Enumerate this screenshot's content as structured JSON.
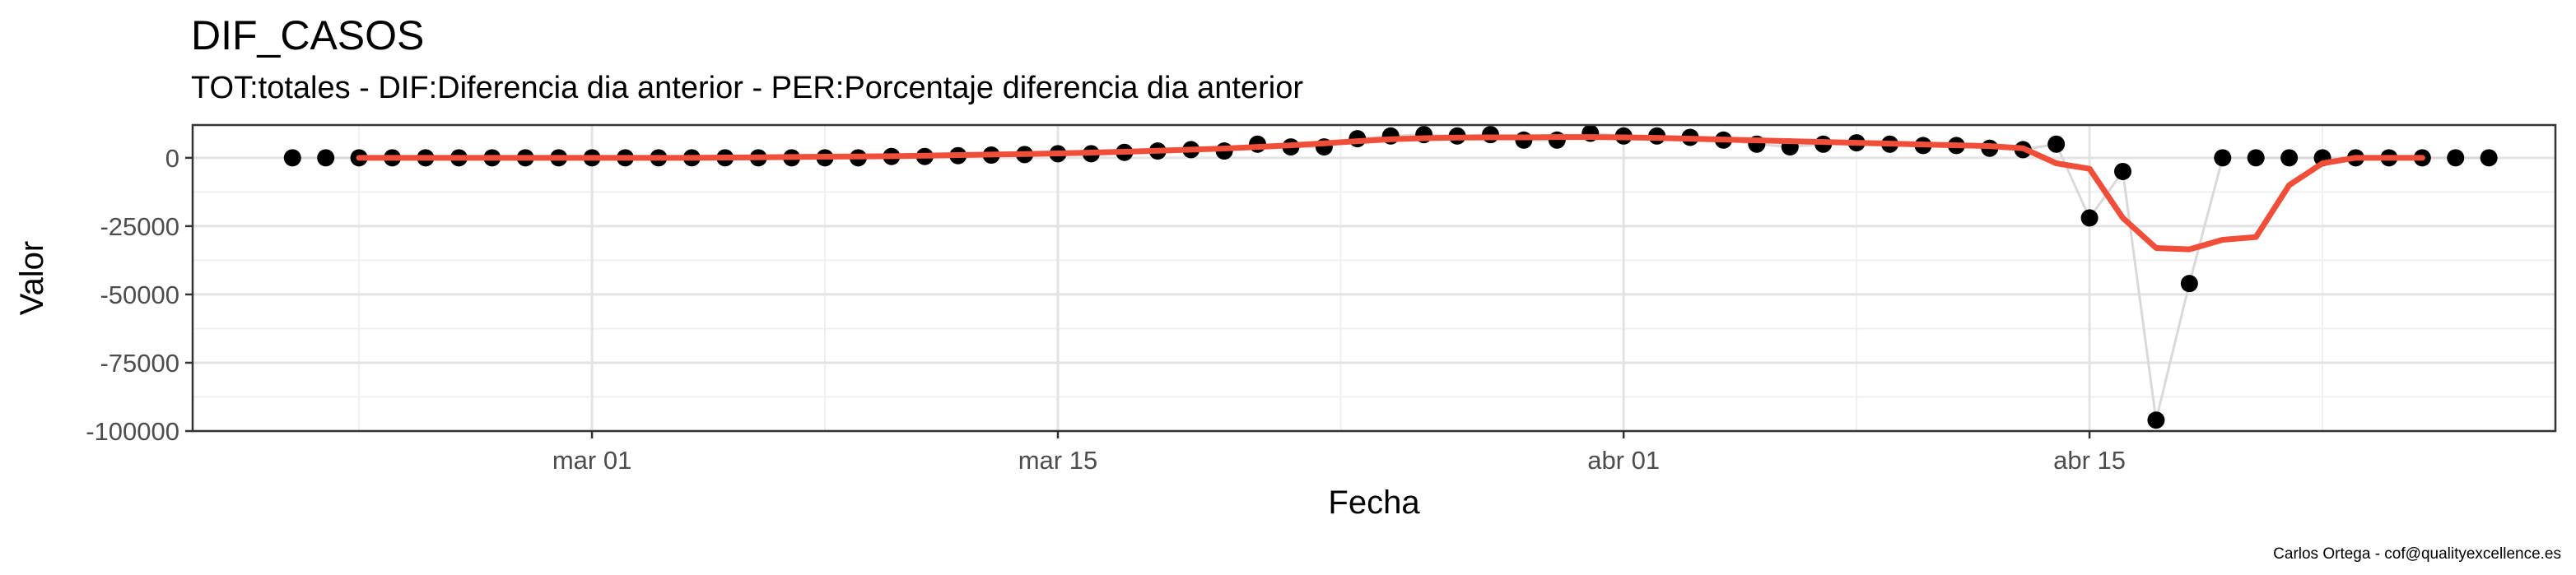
{
  "chart_data": {
    "type": "scatter",
    "title": "DIF_CASOS",
    "subtitle": "TOT:totales - DIF:Diferencia dia anterior - PER:Porcentaje diferencia dia anterior",
    "xlabel": "Fecha",
    "ylabel": "Valor",
    "caption": "Carlos Ortega - cof@qualityexcellence.es",
    "xlim": [
      "2020-02-18",
      "2020-04-29"
    ],
    "ylim": [
      -100000,
      12000
    ],
    "x_ticks": [
      {
        "date": "2020-03-01",
        "label": "mar 01"
      },
      {
        "date": "2020-03-15",
        "label": "mar 15"
      },
      {
        "date": "2020-04-01",
        "label": "abr 01"
      },
      {
        "date": "2020-04-15",
        "label": "abr 15"
      }
    ],
    "y_ticks": [
      {
        "value": 0,
        "label": "0"
      },
      {
        "value": -25000,
        "label": "-25000"
      },
      {
        "value": -50000,
        "label": "-50000"
      },
      {
        "value": -75000,
        "label": "-75000"
      },
      {
        "value": -100000,
        "label": "-100000"
      }
    ],
    "grid": true,
    "colors": {
      "points": "#000000",
      "trend": "#f04e38",
      "connector": "#d9d9d9"
    },
    "series": [
      {
        "kind": "points",
        "x": [
          "2020-02-21",
          "2020-02-22",
          "2020-02-23",
          "2020-02-24",
          "2020-02-25",
          "2020-02-26",
          "2020-02-27",
          "2020-02-28",
          "2020-02-29",
          "2020-03-01",
          "2020-03-02",
          "2020-03-03",
          "2020-03-04",
          "2020-03-05",
          "2020-03-06",
          "2020-03-07",
          "2020-03-08",
          "2020-03-09",
          "2020-03-10",
          "2020-03-11",
          "2020-03-12",
          "2020-03-13",
          "2020-03-14",
          "2020-03-15",
          "2020-03-16",
          "2020-03-17",
          "2020-03-18",
          "2020-03-19",
          "2020-03-20",
          "2020-03-21",
          "2020-03-22",
          "2020-03-23",
          "2020-03-24",
          "2020-03-25",
          "2020-03-26",
          "2020-03-27",
          "2020-03-28",
          "2020-03-29",
          "2020-03-30",
          "2020-03-31",
          "2020-04-01",
          "2020-04-02",
          "2020-04-03",
          "2020-04-04",
          "2020-04-05",
          "2020-04-06",
          "2020-04-07",
          "2020-04-08",
          "2020-04-09",
          "2020-04-10",
          "2020-04-11",
          "2020-04-12",
          "2020-04-13",
          "2020-04-14",
          "2020-04-15",
          "2020-04-16",
          "2020-04-17",
          "2020-04-18",
          "2020-04-19",
          "2020-04-20",
          "2020-04-21",
          "2020-04-22",
          "2020-04-23",
          "2020-04-24",
          "2020-04-25",
          "2020-04-26",
          "2020-04-27"
        ],
        "y": [
          0,
          0,
          0,
          0,
          0,
          0,
          0,
          0,
          0,
          0,
          0,
          0,
          0,
          0,
          0,
          0,
          0,
          0,
          500,
          500,
          800,
          1000,
          1200,
          1500,
          1500,
          2000,
          2500,
          3000,
          2500,
          5000,
          4000,
          4000,
          7000,
          8000,
          8500,
          8000,
          8500,
          6500,
          6500,
          9000,
          8000,
          8000,
          7500,
          6500,
          5000,
          4000,
          5000,
          5500,
          5000,
          4500,
          4500,
          3500,
          3000,
          5000,
          -22000,
          -5000,
          -96000,
          -46000,
          0,
          0,
          0,
          0,
          0,
          0,
          0,
          0,
          0
        ]
      },
      {
        "kind": "smoothed",
        "x": [
          "2020-02-23",
          "2020-02-24",
          "2020-02-25",
          "2020-02-26",
          "2020-02-27",
          "2020-02-28",
          "2020-02-29",
          "2020-03-01",
          "2020-03-02",
          "2020-03-03",
          "2020-03-04",
          "2020-03-05",
          "2020-03-06",
          "2020-03-07",
          "2020-03-08",
          "2020-03-09",
          "2020-03-10",
          "2020-03-11",
          "2020-03-12",
          "2020-03-13",
          "2020-03-14",
          "2020-03-15",
          "2020-03-16",
          "2020-03-17",
          "2020-03-18",
          "2020-03-19",
          "2020-03-20",
          "2020-03-21",
          "2020-03-22",
          "2020-03-23",
          "2020-03-24",
          "2020-03-25",
          "2020-03-26",
          "2020-03-27",
          "2020-03-28",
          "2020-03-29",
          "2020-03-30",
          "2020-03-31",
          "2020-04-01",
          "2020-04-02",
          "2020-04-03",
          "2020-04-04",
          "2020-04-05",
          "2020-04-06",
          "2020-04-07",
          "2020-04-08",
          "2020-04-09",
          "2020-04-10",
          "2020-04-11",
          "2020-04-12",
          "2020-04-13",
          "2020-04-14",
          "2020-04-15",
          "2020-04-16",
          "2020-04-17",
          "2020-04-18",
          "2020-04-19",
          "2020-04-20",
          "2020-04-21",
          "2020-04-22",
          "2020-04-23",
          "2020-04-24",
          "2020-04-25"
        ],
        "y": [
          0,
          0,
          0,
          0,
          0,
          0,
          0,
          0,
          0,
          0,
          0,
          100,
          200,
          300,
          400,
          500,
          600,
          800,
          1000,
          1200,
          1400,
          1600,
          1900,
          2200,
          2600,
          3000,
          3400,
          4000,
          4600,
          5300,
          6100,
          6800,
          7200,
          7400,
          7500,
          7500,
          7600,
          7600,
          7500,
          7300,
          7000,
          6700,
          6400,
          6100,
          5800,
          5500,
          5200,
          4900,
          4600,
          4300,
          3500,
          -2000,
          -4000,
          -22000,
          -33000,
          -33500,
          -30000,
          -29000,
          -10000,
          -2000,
          0,
          0,
          0
        ]
      }
    ]
  }
}
